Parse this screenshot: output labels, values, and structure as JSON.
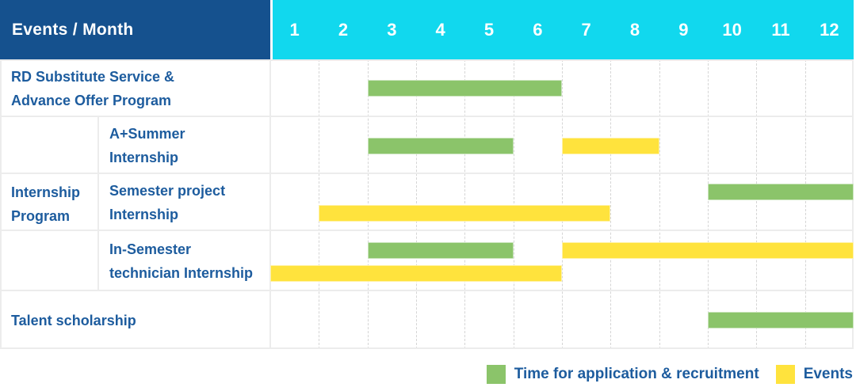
{
  "title": "Events / Month",
  "months": [
    "1",
    "2",
    "3",
    "4",
    "5",
    "6",
    "7",
    "8",
    "9",
    "10",
    "11",
    "12"
  ],
  "colors": {
    "header_bg": "#15518e",
    "months_bg": "#11d8ee",
    "green": "#8bc46a",
    "yellow": "#ffe33d",
    "text_blue": "#1d5c9e"
  },
  "legend": [
    {
      "key": "application",
      "label": "Time for application & recruitment"
    },
    {
      "key": "events",
      "label": "Events"
    }
  ],
  "group": {
    "label": "Internship Program",
    "label_lines": [
      "Internship",
      "Program"
    ]
  },
  "chart_data": {
    "type": "table",
    "subtype": "gantt",
    "title": "Events / Month",
    "x_axis": {
      "label": "Month",
      "ticks": [
        1,
        2,
        3,
        4,
        5,
        6,
        7,
        8,
        9,
        10,
        11,
        12
      ],
      "range": [
        1,
        12
      ]
    },
    "series_legend": [
      {
        "key": "application",
        "label": "Time for application & recruitment",
        "color": "#8bc46a"
      },
      {
        "key": "events",
        "label": "Events",
        "color": "#ffe33d"
      }
    ],
    "rows": [
      {
        "group": "",
        "label": "RD Substitute Service & Advance Offer Program",
        "label_lines": [
          "RD Substitute Service &",
          "Advance Offer Program"
        ],
        "bars": [
          {
            "series": "application",
            "start_month": 3,
            "end_month": 6,
            "line": "center"
          }
        ]
      },
      {
        "group": "Internship Program",
        "label": "A+Summer Internship",
        "label_lines": [
          "A+Summer",
          "Internship"
        ],
        "bars": [
          {
            "series": "application",
            "start_month": 3,
            "end_month": 5,
            "line": "center"
          },
          {
            "series": "events",
            "start_month": 7,
            "end_month": 8,
            "line": "center"
          }
        ]
      },
      {
        "group": "Internship Program",
        "label": "Semester project Internship",
        "label_lines": [
          "Semester project",
          "Internship"
        ],
        "bars": [
          {
            "series": "application",
            "start_month": 10,
            "end_month": 12,
            "line": "upper"
          },
          {
            "series": "events",
            "start_month": 2,
            "end_month": 7,
            "line": "lower"
          }
        ]
      },
      {
        "group": "Internship Program",
        "label": "In-Semester technician Internship",
        "label_lines": [
          "In-Semester",
          "technician Internship"
        ],
        "bars": [
          {
            "series": "application",
            "start_month": 3,
            "end_month": 5,
            "line": "upper"
          },
          {
            "series": "events",
            "start_month": 7,
            "end_month": 12,
            "line": "upper"
          },
          {
            "series": "events",
            "start_month": 1,
            "end_month": 6,
            "line": "lower"
          }
        ]
      },
      {
        "group": "",
        "label": "Talent scholarship",
        "label_lines": [
          "Talent scholarship"
        ],
        "bars": [
          {
            "series": "application",
            "start_month": 10,
            "end_month": 12,
            "line": "center"
          }
        ]
      }
    ]
  }
}
